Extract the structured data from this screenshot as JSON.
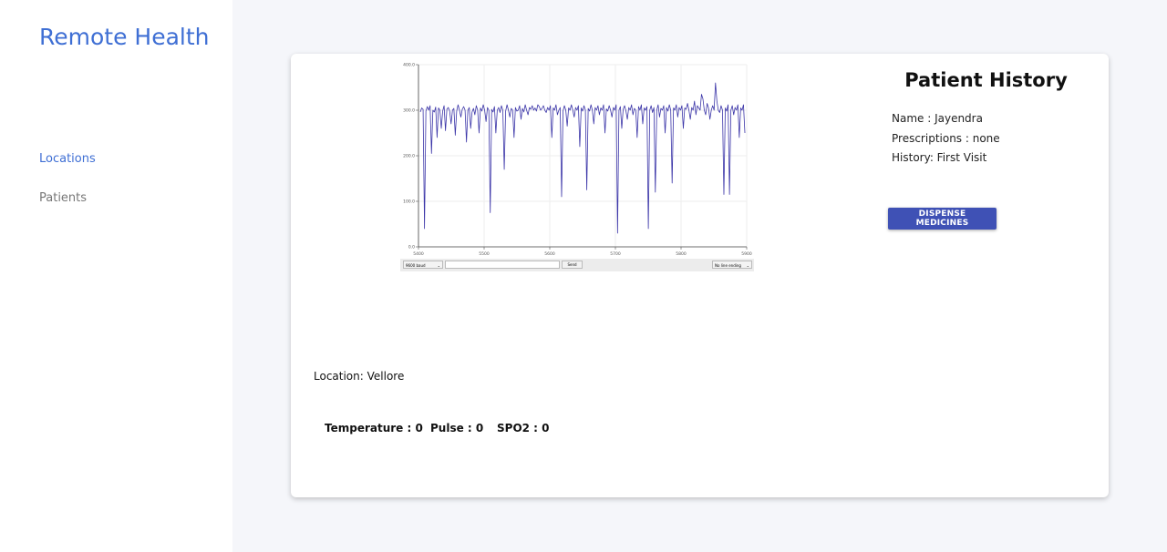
{
  "sidebar": {
    "brand": "Remote Health",
    "items": [
      {
        "label": "Locations",
        "active": true
      },
      {
        "label": "Patients",
        "active": false
      }
    ]
  },
  "patient": {
    "history_title": "Patient History",
    "name_line": "Name : Jayendra",
    "prescriptions_line": "Prescriptions : none",
    "history_line": "History: First Visit",
    "dispense_label": "DISPENSE MEDICINES"
  },
  "location": {
    "label": "Location: Vellore"
  },
  "vitals": {
    "temperature": "Temperature : 0",
    "pulse": "Pulse : 0",
    "spo2": "SPO2 : 0"
  },
  "serial_monitor": {
    "baud": "9600 baud",
    "send_label": "Send",
    "line_ending": "No line ending",
    "input_value": ""
  },
  "colors": {
    "accent": "#3f6fd4",
    "button": "#3f51b5",
    "trace": "#3b35a8"
  },
  "chart_data": {
    "type": "line",
    "title": "",
    "xlabel": "",
    "ylabel": "",
    "x_ticks": [
      "5400",
      "5500",
      "5600",
      "5700",
      "5800",
      "5900"
    ],
    "y_ticks": [
      "0.0",
      "100.0",
      "200.0",
      "300.0",
      "400.0"
    ],
    "xlim": [
      5400,
      5900
    ],
    "ylim": [
      0,
      400
    ],
    "grid": true,
    "series": [
      {
        "values": [
          296,
          305,
          302,
          40,
          298,
          308,
          300,
          310,
          205,
          300,
          296,
          307,
          240,
          305,
          300,
          260,
          298,
          310,
          255,
          302,
          306,
          298,
          270,
          300,
          304,
          245,
          298,
          312,
          300,
          285,
          302,
          308,
          300,
          230,
          300,
          306,
          260,
          296,
          304,
          290,
          310,
          300,
          250,
          305,
          298,
          312,
          300,
          275,
          306,
          300,
          75,
          302,
          296,
          308,
          250,
          300,
          306,
          295,
          310,
          300,
          170,
          298,
          312,
          300,
          285,
          304,
          300,
          240,
          306,
          298,
          300,
          310,
          280,
          304,
          296,
          312,
          300,
          290,
          306,
          302,
          310,
          300,
          305,
          298,
          312,
          308,
          300,
          304,
          310,
          300,
          295,
          306,
          300,
          310,
          240,
          305,
          300,
          312,
          290,
          300,
          306,
          110,
          298,
          310,
          300,
          265,
          305,
          300,
          312,
          300,
          285,
          306,
          300,
          310,
          220,
          305,
          298,
          310,
          300,
          125,
          304,
          298,
          312,
          300,
          270,
          306,
          300,
          310,
          290,
          305,
          300,
          312,
          250,
          303,
          298,
          310,
          300,
          285,
          306,
          300,
          312,
          30,
          300,
          308,
          260,
          302,
          310,
          298,
          280,
          306,
          300,
          312,
          290,
          304,
          300,
          240,
          308,
          300,
          312,
          270,
          305,
          300,
          308,
          40,
          300,
          310,
          295,
          306,
          120,
          300,
          312,
          285,
          304,
          300,
          310,
          250,
          306,
          298,
          312,
          300,
          140,
          305,
          300,
          312,
          285,
          306,
          300,
          310,
          260,
          305,
          302,
          315,
          300,
          280,
          306,
          300,
          320,
          290,
          310,
          305,
          300,
          335,
          325,
          300,
          290,
          315,
          305,
          280,
          300,
          310,
          300,
          360,
          320,
          300,
          295,
          310,
          300,
          115,
          305,
          298,
          312,
          115,
          300,
          310,
          290,
          306,
          300,
          312,
          240,
          305,
          300,
          312,
          250
        ]
      }
    ]
  }
}
